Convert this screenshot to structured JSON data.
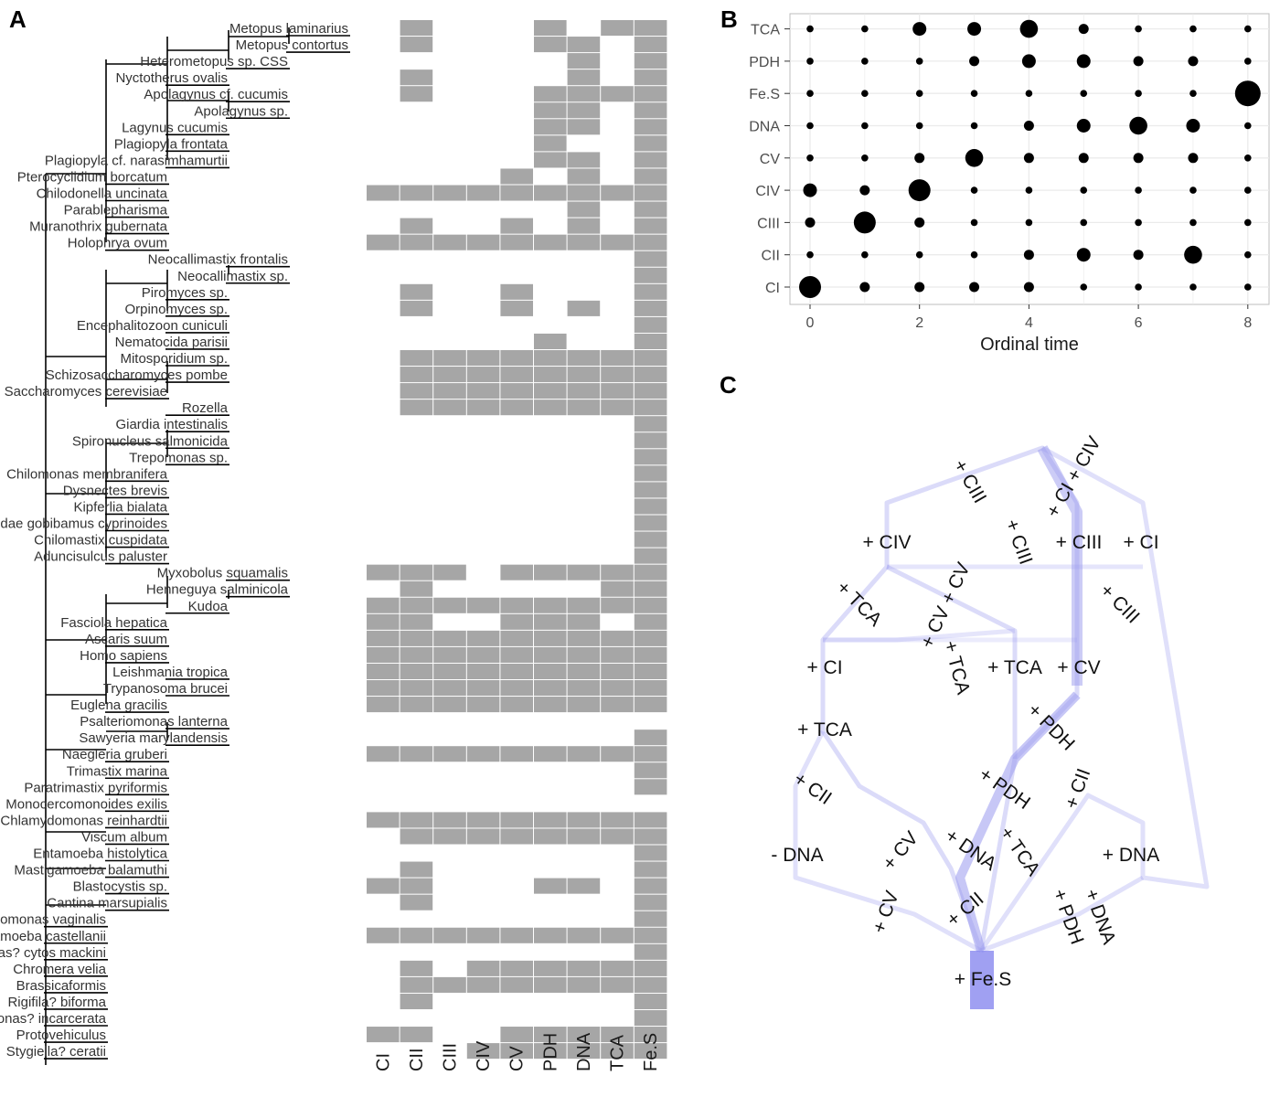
{
  "panels": {
    "a": "A",
    "b": "B",
    "c": "C"
  },
  "colors": {
    "cell": "#a6a6a6",
    "dot": "#000000",
    "grid": "#ebebeb",
    "edge": "#9999ee",
    "node": "#8080ee"
  },
  "chart_data": [
    {
      "type": "heatmap",
      "title": "",
      "columns": [
        "CI",
        "CII",
        "CIII",
        "CIV",
        "CV",
        "PDH",
        "DNA",
        "TCA",
        "Fe.S"
      ],
      "rows": [
        {
          "taxon": "Metopus laminarius",
          "present": [
            0,
            1,
            0,
            0,
            0,
            1,
            0,
            1,
            1
          ]
        },
        {
          "taxon": "Metopus contortus",
          "present": [
            0,
            1,
            0,
            0,
            0,
            1,
            1,
            0,
            1
          ]
        },
        {
          "taxon": "Heterometopus sp. CSS",
          "present": [
            0,
            0,
            0,
            0,
            0,
            0,
            1,
            0,
            1
          ]
        },
        {
          "taxon": "Nyctotherus ovalis",
          "present": [
            0,
            1,
            0,
            0,
            0,
            0,
            1,
            0,
            1
          ]
        },
        {
          "taxon": "Apolagynus cf. cucumis",
          "present": [
            0,
            1,
            0,
            0,
            0,
            1,
            1,
            1,
            1
          ]
        },
        {
          "taxon": "Apolagynus sp.",
          "present": [
            0,
            0,
            0,
            0,
            0,
            1,
            1,
            0,
            1
          ]
        },
        {
          "taxon": "Lagynus cucumis",
          "present": [
            0,
            0,
            0,
            0,
            0,
            1,
            1,
            0,
            1
          ]
        },
        {
          "taxon": "Plagiopyla frontata",
          "present": [
            0,
            0,
            0,
            0,
            0,
            1,
            0,
            0,
            1
          ]
        },
        {
          "taxon": "Plagiopyla cf. narasimhamurtii",
          "present": [
            0,
            0,
            0,
            0,
            0,
            1,
            1,
            0,
            1
          ]
        },
        {
          "taxon": "Pterocyclidium borcatum",
          "present": [
            0,
            0,
            0,
            0,
            1,
            0,
            1,
            0,
            1
          ]
        },
        {
          "taxon": "Chilodonella uncinata",
          "present": [
            1,
            1,
            1,
            1,
            1,
            1,
            1,
            1,
            1
          ]
        },
        {
          "taxon": "Parablepharisma",
          "present": [
            0,
            0,
            0,
            0,
            0,
            0,
            1,
            0,
            1
          ]
        },
        {
          "taxon": "Muranothrix gubernata",
          "present": [
            0,
            1,
            0,
            0,
            1,
            0,
            1,
            0,
            1
          ]
        },
        {
          "taxon": "Holophrya ovum",
          "present": [
            1,
            1,
            1,
            1,
            1,
            1,
            1,
            1,
            1
          ]
        },
        {
          "taxon": "Neocallimastix frontalis",
          "present": [
            0,
            0,
            0,
            0,
            0,
            0,
            0,
            0,
            1
          ]
        },
        {
          "taxon": "Neocallimastix sp.",
          "present": [
            0,
            0,
            0,
            0,
            0,
            0,
            0,
            0,
            1
          ]
        },
        {
          "taxon": "Piromyces sp.",
          "present": [
            0,
            1,
            0,
            0,
            1,
            0,
            0,
            0,
            1
          ]
        },
        {
          "taxon": "Orpinomyces sp.",
          "present": [
            0,
            1,
            0,
            0,
            1,
            0,
            1,
            0,
            1
          ]
        },
        {
          "taxon": "Encephalitozoon cuniculi",
          "present": [
            0,
            0,
            0,
            0,
            0,
            0,
            0,
            0,
            1
          ]
        },
        {
          "taxon": "Nematocida parisii",
          "present": [
            0,
            0,
            0,
            0,
            0,
            1,
            0,
            0,
            1
          ]
        },
        {
          "taxon": "Mitosporidium sp.",
          "present": [
            0,
            1,
            1,
            1,
            1,
            1,
            1,
            1,
            1
          ]
        },
        {
          "taxon": "Schizosaccharomyces pombe",
          "present": [
            0,
            1,
            1,
            1,
            1,
            1,
            1,
            1,
            1
          ]
        },
        {
          "taxon": "Saccharomyces cerevisiae",
          "present": [
            0,
            1,
            1,
            1,
            1,
            1,
            1,
            1,
            1
          ]
        },
        {
          "taxon": "Rozella",
          "present": [
            0,
            1,
            1,
            1,
            1,
            1,
            1,
            1,
            1
          ]
        },
        {
          "taxon": "Giardia intestinalis",
          "present": [
            0,
            0,
            0,
            0,
            0,
            0,
            0,
            0,
            1
          ]
        },
        {
          "taxon": "Spironucleus salmonicida",
          "present": [
            0,
            0,
            0,
            0,
            0,
            0,
            0,
            0,
            1
          ]
        },
        {
          "taxon": "Trepomonas sp.",
          "present": [
            0,
            0,
            0,
            0,
            0,
            0,
            0,
            0,
            1
          ]
        },
        {
          "taxon": "Chilomonas membranifera",
          "present": [
            0,
            0,
            0,
            0,
            0,
            0,
            0,
            0,
            1
          ]
        },
        {
          "taxon": "Dysnectes brevis",
          "present": [
            0,
            0,
            0,
            0,
            0,
            0,
            0,
            0,
            1
          ]
        },
        {
          "taxon": "Kipferlia bialata",
          "present": [
            0,
            0,
            0,
            0,
            0,
            0,
            0,
            0,
            1
          ]
        },
        {
          "taxon": "Hexamitidae gobibamus cyprinoides",
          "present": [
            0,
            0,
            0,
            0,
            0,
            0,
            0,
            0,
            1
          ]
        },
        {
          "taxon": "Chilomastix cuspidata",
          "present": [
            0,
            0,
            0,
            0,
            0,
            0,
            0,
            0,
            1
          ]
        },
        {
          "taxon": "Aduncisulcus paluster",
          "present": [
            0,
            0,
            0,
            0,
            0,
            0,
            0,
            0,
            1
          ]
        },
        {
          "taxon": "Myxobolus squamalis",
          "present": [
            1,
            1,
            1,
            0,
            1,
            1,
            1,
            1,
            1
          ]
        },
        {
          "taxon": "Henneguya salminicola",
          "present": [
            0,
            1,
            0,
            0,
            0,
            0,
            0,
            1,
            1
          ]
        },
        {
          "taxon": "Kudoa",
          "present": [
            1,
            1,
            1,
            1,
            1,
            1,
            1,
            1,
            1
          ]
        },
        {
          "taxon": "Fasciola hepatica",
          "present": [
            1,
            1,
            0,
            0,
            1,
            1,
            1,
            0,
            1
          ]
        },
        {
          "taxon": "Ascaris suum",
          "present": [
            1,
            1,
            1,
            1,
            1,
            1,
            1,
            1,
            1
          ]
        },
        {
          "taxon": "Homo sapiens",
          "present": [
            1,
            1,
            1,
            1,
            1,
            1,
            1,
            1,
            1
          ]
        },
        {
          "taxon": "Leishmania tropica",
          "present": [
            1,
            1,
            1,
            1,
            1,
            1,
            1,
            1,
            1
          ]
        },
        {
          "taxon": "Trypanosoma brucei",
          "present": [
            1,
            1,
            1,
            1,
            1,
            1,
            1,
            1,
            1
          ]
        },
        {
          "taxon": "Euglena gracilis",
          "present": [
            1,
            1,
            1,
            1,
            1,
            1,
            1,
            1,
            1
          ]
        },
        {
          "taxon": "Psalteriomonas lanterna",
          "present": [
            0,
            0,
            0,
            0,
            0,
            0,
            0,
            0,
            0
          ]
        },
        {
          "taxon": "Sawyeria marylandensis",
          "present": [
            0,
            0,
            0,
            0,
            0,
            0,
            0,
            0,
            1
          ]
        },
        {
          "taxon": "Naegleria gruberi",
          "present": [
            1,
            1,
            1,
            1,
            1,
            1,
            1,
            1,
            1
          ]
        },
        {
          "taxon": "Trimastix marina",
          "present": [
            0,
            0,
            0,
            0,
            0,
            0,
            0,
            0,
            1
          ]
        },
        {
          "taxon": "Paratrimastix pyriformis",
          "present": [
            0,
            0,
            0,
            0,
            0,
            0,
            0,
            0,
            1
          ]
        },
        {
          "taxon": "Monocercomonoides exilis",
          "present": [
            0,
            0,
            0,
            0,
            0,
            0,
            0,
            0,
            0
          ]
        },
        {
          "taxon": "Chlamydomonas reinhardtii",
          "present": [
            1,
            1,
            1,
            1,
            1,
            1,
            1,
            1,
            1
          ]
        },
        {
          "taxon": "Viscum album",
          "present": [
            0,
            1,
            1,
            1,
            1,
            1,
            1,
            1,
            1
          ]
        },
        {
          "taxon": "Entamoeba histolytica",
          "present": [
            0,
            0,
            0,
            0,
            0,
            0,
            0,
            0,
            1
          ]
        },
        {
          "taxon": "Mastigamoeba balamuthi",
          "present": [
            0,
            1,
            0,
            0,
            0,
            0,
            0,
            0,
            1
          ]
        },
        {
          "taxon": "Blastocystis sp.",
          "present": [
            1,
            1,
            0,
            0,
            0,
            1,
            1,
            0,
            1
          ]
        },
        {
          "taxon": "Cantina marsupialis",
          "present": [
            0,
            1,
            0,
            0,
            0,
            0,
            0,
            0,
            1
          ]
        },
        {
          "taxon": "Trichomonas vaginalis",
          "present": [
            0,
            0,
            0,
            0,
            0,
            0,
            0,
            0,
            1
          ]
        },
        {
          "taxon": "Acanthamoeba castellanii",
          "present": [
            1,
            1,
            1,
            1,
            1,
            1,
            1,
            1,
            1
          ]
        },
        {
          "taxon": "Andalucia/Reclinomonas? cytos mackini",
          "present": [
            0,
            0,
            0,
            0,
            0,
            0,
            0,
            0,
            1
          ]
        },
        {
          "taxon": "Chromera velia",
          "present": [
            0,
            1,
            0,
            1,
            1,
            1,
            1,
            1,
            1
          ]
        },
        {
          "taxon": "Brassicaformis",
          "present": [
            0,
            1,
            1,
            1,
            1,
            1,
            1,
            1,
            1
          ]
        },
        {
          "taxon": "Rigifila? biforma",
          "present": [
            0,
            1,
            0,
            0,
            0,
            0,
            0,
            0,
            1
          ]
        },
        {
          "taxon": "Mantamonas? incarcerata",
          "present": [
            0,
            0,
            0,
            0,
            0,
            0,
            0,
            0,
            1
          ]
        },
        {
          "taxon": "Protovehiculus",
          "present": [
            1,
            1,
            0,
            0,
            1,
            1,
            1,
            1,
            1
          ]
        },
        {
          "taxon": "Stygiella? ceratii",
          "present": [
            0,
            0,
            0,
            1,
            1,
            1,
            1,
            1,
            1
          ]
        }
      ]
    },
    {
      "type": "scatter",
      "title": "",
      "xlabel": "Ordinal time",
      "ylabel": "",
      "xlim": [
        -0.4,
        8.4
      ],
      "xticks": [
        0,
        2,
        4,
        6,
        8
      ],
      "categories": [
        "CI",
        "CII",
        "CIII",
        "CIV",
        "CV",
        "DNA",
        "Fe.S",
        "PDH",
        "TCA"
      ],
      "sizes": {
        "TCA": [
          1,
          1,
          3,
          3,
          4,
          2,
          1,
          1,
          1
        ],
        "PDH": [
          1,
          1,
          1,
          2,
          3,
          3,
          2,
          2,
          1
        ],
        "Fe.S": [
          1,
          1,
          1,
          1,
          1,
          1,
          1,
          1,
          6
        ],
        "DNA": [
          1,
          1,
          1,
          1,
          2,
          3,
          4,
          3,
          1
        ],
        "CV": [
          1,
          1,
          2,
          4,
          2,
          2,
          2,
          2,
          1
        ],
        "CIV": [
          3,
          2,
          5,
          1,
          1,
          1,
          1,
          1,
          1
        ],
        "CIII": [
          2,
          5,
          2,
          1,
          1,
          1,
          1,
          1,
          1
        ],
        "CII": [
          1,
          1,
          1,
          1,
          2,
          3,
          2,
          4,
          1
        ],
        "CI": [
          5,
          2,
          2,
          2,
          2,
          1,
          1,
          1,
          1
        ]
      },
      "grid": true
    }
  ],
  "transition_graph": {
    "labels": [
      "+ CIII",
      "+ CI + CIV",
      "+ CIV",
      "+ CIII",
      "+ CIII",
      "+ CI",
      "+ TCA",
      "+ CV + CV",
      "+ CIII",
      "+ CI",
      "+ TCA",
      "+ TCA",
      "+ CV",
      "+ PDH",
      "+ TCA",
      "+ CII",
      "+ PDH",
      "+ CII",
      "- DNA",
      "+ CV",
      "+ DNA",
      "+ TCA",
      "+ DNA",
      "+ CV",
      "+ CII",
      "+ PDH",
      "+ DNA",
      "+ Fe.S"
    ]
  }
}
